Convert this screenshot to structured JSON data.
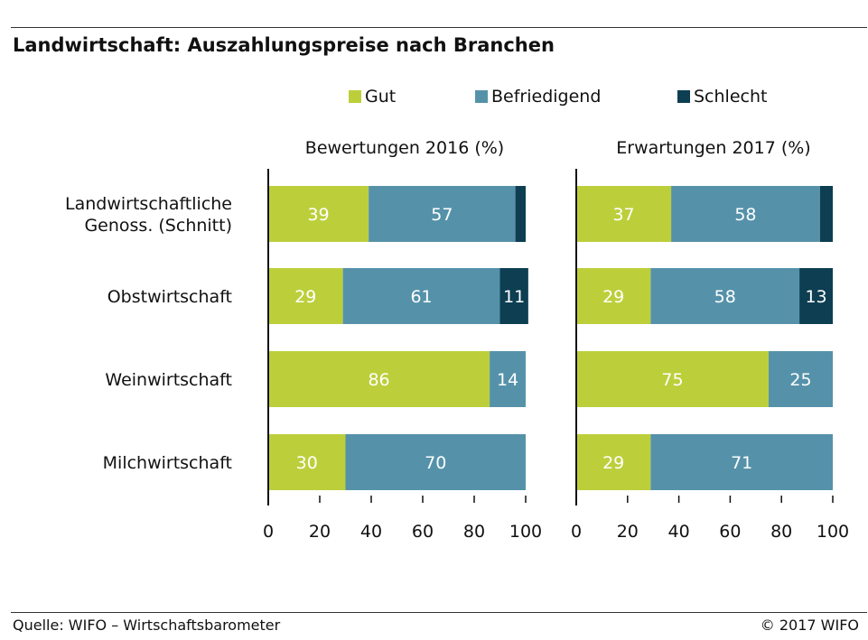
{
  "header": {
    "title": "Landwirtschaft: Auszahlungspreise nach Branchen"
  },
  "footer": {
    "source": "Quelle: WIFO – Wirtschaftsbarometer",
    "copyright": "© 2017 WIFO"
  },
  "colors": {
    "gut": "#bccf3b",
    "befriedigend": "#5592aa",
    "schlecht": "#0d3e52"
  },
  "legend": {
    "items": [
      {
        "label": "Gut",
        "color": "#bccf3b"
      },
      {
        "label": "Befriedigend",
        "color": "#5592aa"
      },
      {
        "label": "Schlecht",
        "color": "#0d3e52"
      }
    ]
  },
  "chart_data": [
    {
      "type": "bar",
      "orientation": "horizontal",
      "stacked": true,
      "title": "Bewertungen 2016 (%)",
      "categories": [
        "Landwirtschaftliche Genoss. (Schnitt)",
        "Obstwirtschaft",
        "Weinwirtschaft",
        "Milchwirtschaft"
      ],
      "series": [
        {
          "name": "Gut",
          "values": [
            39,
            29,
            86,
            30
          ],
          "labels": [
            "39",
            "29",
            "86",
            "30"
          ]
        },
        {
          "name": "Befriedigend",
          "values": [
            57,
            61,
            14,
            70
          ],
          "labels": [
            "57",
            "61",
            "14",
            "70"
          ]
        },
        {
          "name": "Schlecht",
          "values": [
            4,
            11,
            0,
            0
          ],
          "labels": [
            "",
            "11",
            "",
            ""
          ]
        }
      ],
      "xlim": [
        0,
        100
      ],
      "xticks": [
        "0",
        "20",
        "40",
        "60",
        "80",
        "100"
      ],
      "grid": false,
      "legend": "top"
    },
    {
      "type": "bar",
      "orientation": "horizontal",
      "stacked": true,
      "title": "Erwartungen 2017 (%)",
      "categories": [
        "Landwirtschaftliche Genoss. (Schnitt)",
        "Obstwirtschaft",
        "Weinwirtschaft",
        "Milchwirtschaft"
      ],
      "series": [
        {
          "name": "Gut",
          "values": [
            37,
            29,
            75,
            29
          ],
          "labels": [
            "37",
            "29",
            "75",
            "29"
          ]
        },
        {
          "name": "Befriedigend",
          "values": [
            58,
            58,
            25,
            71
          ],
          "labels": [
            "58",
            "58",
            "25",
            "71"
          ]
        },
        {
          "name": "Schlecht",
          "values": [
            5,
            13,
            0,
            0
          ],
          "labels": [
            "",
            "13",
            "",
            ""
          ]
        }
      ],
      "xlim": [
        0,
        100
      ],
      "xticks": [
        "0",
        "20",
        "40",
        "60",
        "80",
        "100"
      ],
      "grid": false,
      "legend": "top"
    }
  ],
  "category_labels": [
    [
      "Landwirtschaftliche",
      "Genoss. (Schnitt)"
    ],
    [
      "Obstwirtschaft"
    ],
    [
      "Weinwirtschaft"
    ],
    [
      "Milchwirtschaft"
    ]
  ]
}
